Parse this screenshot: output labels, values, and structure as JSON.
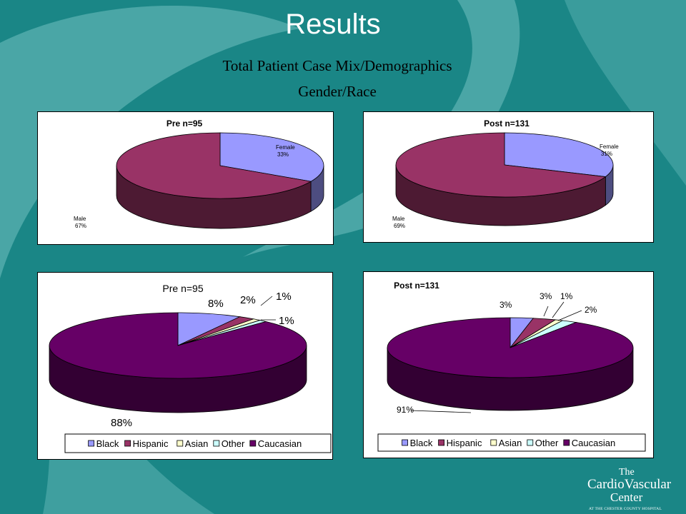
{
  "slide": {
    "title": "Results",
    "subtitle": "Total Patient Case Mix/Demographics",
    "subtitle2": "Gender/Race"
  },
  "logo": {
    "line1": "The",
    "line2": "CardioVascular",
    "line3": "Center",
    "line4": "AT THE CHESTER COUNTY HOSPITAL"
  },
  "chart_data": [
    {
      "type": "pie",
      "title": "Pre n=95",
      "slices": [
        {
          "name": "Female",
          "value": 33,
          "label": "33%",
          "color": "#9999ff"
        },
        {
          "name": "Male",
          "value": 67,
          "label": "67%",
          "color": "#993366"
        }
      ],
      "legend": "none"
    },
    {
      "type": "pie",
      "title": "Post n=131",
      "slices": [
        {
          "name": "Female",
          "value": 31,
          "label": "31%",
          "color": "#9999ff"
        },
        {
          "name": "Male",
          "value": 69,
          "label": "69%",
          "color": "#993366"
        }
      ],
      "legend": "none"
    },
    {
      "type": "pie",
      "title": "Pre n=95",
      "slices": [
        {
          "name": "Black",
          "value": 8,
          "label": "8%",
          "color": "#9999ff"
        },
        {
          "name": "Hispanic",
          "value": 2,
          "label": "2%",
          "color": "#993366"
        },
        {
          "name": "Asian",
          "value": 1,
          "label": "1%",
          "color": "#ffffcc"
        },
        {
          "name": "Other",
          "value": 1,
          "label": "1%",
          "color": "#ccffff"
        },
        {
          "name": "Caucasian",
          "value": 88,
          "label": "88%",
          "color": "#660066"
        }
      ],
      "legend": "bottom"
    },
    {
      "type": "pie",
      "title": "Post n=131",
      "slices": [
        {
          "name": "Black",
          "value": 3,
          "label": "3%",
          "color": "#9999ff"
        },
        {
          "name": "Hispanic",
          "value": 3,
          "label": "3%",
          "color": "#993366"
        },
        {
          "name": "Asian",
          "value": 1,
          "label": "1%",
          "color": "#ffffcc"
        },
        {
          "name": "Other",
          "value": 2,
          "label": "2%",
          "color": "#ccffff"
        },
        {
          "name": "Caucasian",
          "value": 91,
          "label": "91%",
          "color": "#660066"
        }
      ],
      "legend": "bottom"
    }
  ]
}
